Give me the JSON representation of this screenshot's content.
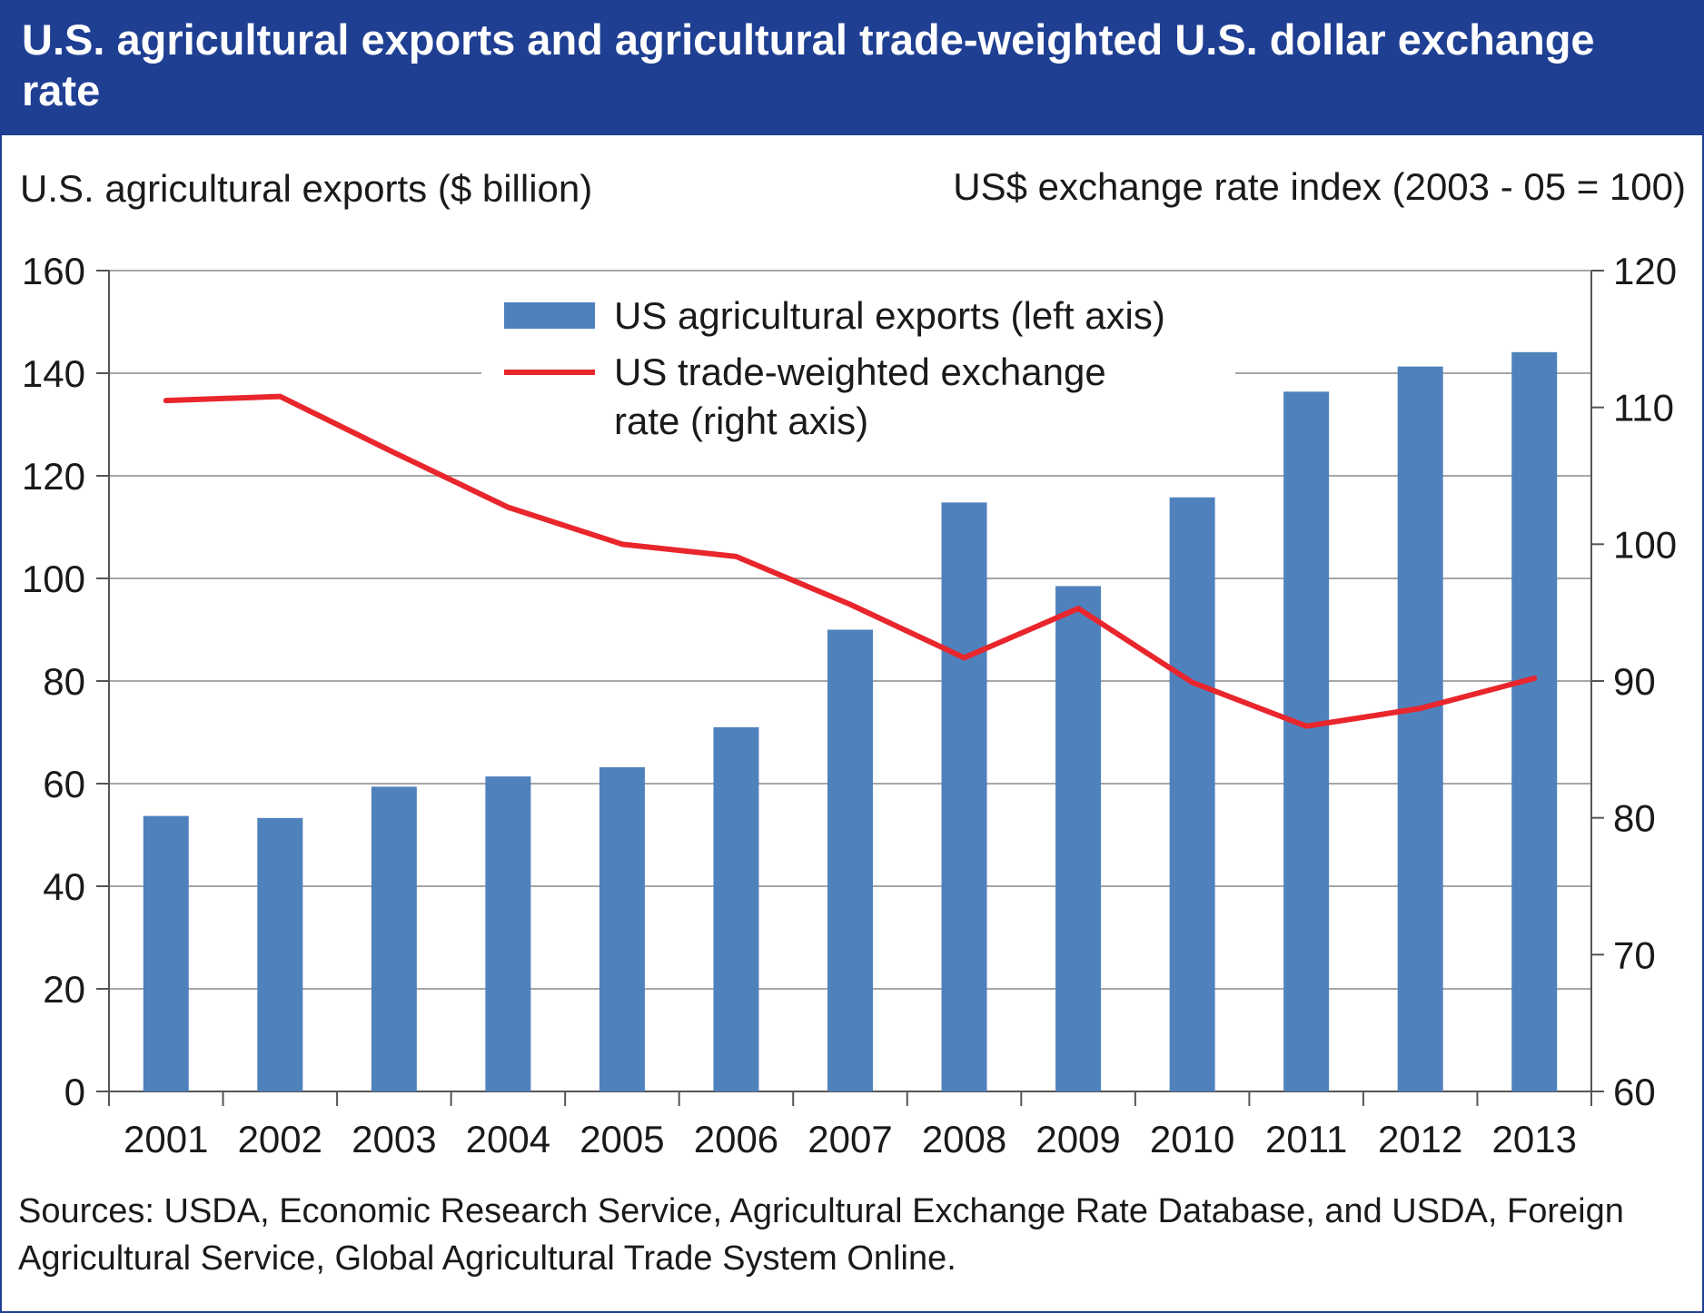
{
  "title": "U.S. agricultural exports and agricultural trade-weighted U.S. dollar exchange rate",
  "source": "Sources: USDA, Economic Research Service, Agricultural Exchange Rate Database, and USDA, Foreign Agricultural Service, Global Agricultural Trade System Online.",
  "colors": {
    "title_bar": "#1f3f93",
    "bars": "#4f81bd",
    "line": "#e8262c",
    "gridlines": "#a6a6a6"
  },
  "chart_data": {
    "type": "bar",
    "categories": [
      "2001",
      "2002",
      "2003",
      "2004",
      "2005",
      "2006",
      "2007",
      "2008",
      "2009",
      "2010",
      "2011",
      "2012",
      "2013"
    ],
    "ylabel": "U.S. agricultural exports ($ billion)",
    "ylabel_right": "US$ exchange rate index (2003 - 05 = 100)",
    "ylim": [
      0,
      160
    ],
    "ylim_right": [
      60,
      120
    ],
    "yticks": [
      "0",
      "20",
      "40",
      "60",
      "80",
      "100",
      "120",
      "140",
      "160"
    ],
    "yticks_right": [
      "60",
      "70",
      "80",
      "90",
      "100",
      "110",
      "120"
    ],
    "grid": true,
    "legend_position": "top-center",
    "series": [
      {
        "name": "US agricultural exports (left axis)",
        "type": "bar",
        "axis": "left",
        "values": [
          53.7,
          53.3,
          59.4,
          61.4,
          63.2,
          71.0,
          90.0,
          114.8,
          98.5,
          115.8,
          136.4,
          141.3,
          144.1
        ]
      },
      {
        "name": "US trade-weighted exchange rate (right axis)",
        "name_lines": [
          "US trade-weighted exchange",
          "rate (right axis)"
        ],
        "type": "line",
        "axis": "right",
        "values": [
          110.5,
          110.8,
          106.7,
          102.7,
          100.0,
          99.1,
          95.6,
          91.7,
          95.3,
          89.9,
          86.7,
          88.0,
          90.2
        ]
      }
    ]
  }
}
